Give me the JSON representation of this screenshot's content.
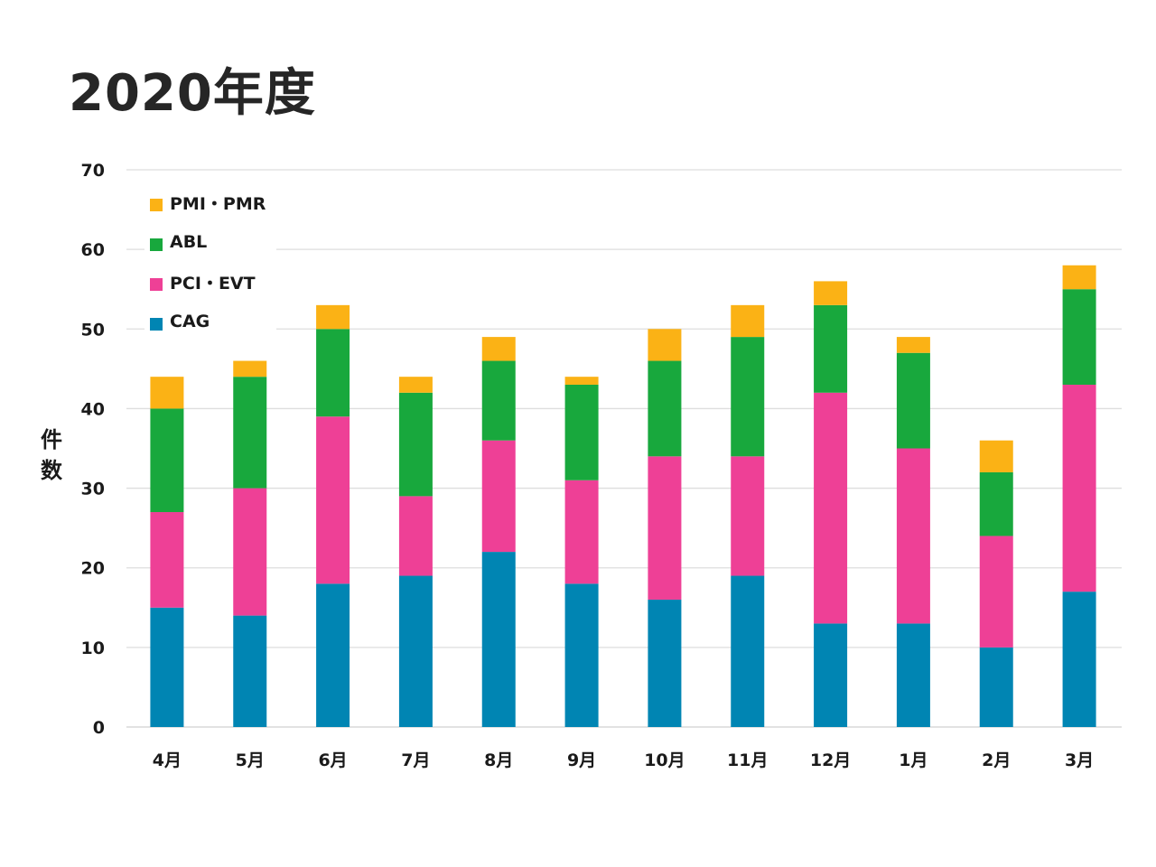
{
  "chart_data": {
    "type": "bar",
    "stacked": true,
    "title": "2020年度",
    "ylabel": "件数",
    "xlabel": "",
    "ylim": [
      0,
      70
    ],
    "yticks": [
      0,
      10,
      20,
      30,
      40,
      50,
      60,
      70
    ],
    "categories": [
      "4月",
      "5月",
      "6月",
      "7月",
      "8月",
      "9月",
      "10月",
      "11月",
      "12月",
      "1月",
      "2月",
      "3月"
    ],
    "series": [
      {
        "name": "CAG",
        "color": "#0085B3",
        "values": [
          15,
          14,
          18,
          19,
          22,
          18,
          16,
          19,
          13,
          13,
          10,
          17
        ]
      },
      {
        "name": "PCI・EVT",
        "color": "#EE4096",
        "values": [
          12,
          16,
          21,
          10,
          14,
          13,
          18,
          15,
          29,
          22,
          14,
          26
        ]
      },
      {
        "name": "ABL",
        "color": "#18A83D",
        "values": [
          13,
          14,
          11,
          13,
          10,
          12,
          12,
          15,
          11,
          12,
          8,
          12
        ]
      },
      {
        "name": "PMI・PMR",
        "color": "#FBB215",
        "values": [
          4,
          2,
          3,
          2,
          3,
          1,
          4,
          4,
          3,
          2,
          4,
          3
        ]
      }
    ],
    "grid": true,
    "legend_position": "top-left"
  }
}
